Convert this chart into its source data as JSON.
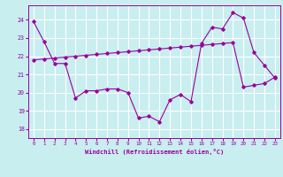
{
  "background_color": "#c8eef0",
  "line_color": "#990099",
  "grid_color": "#ffffff",
  "xlim": [
    -0.5,
    23.5
  ],
  "ylim": [
    17.5,
    24.8
  ],
  "yticks": [
    18,
    19,
    20,
    21,
    22,
    23,
    24
  ],
  "xticks": [
    0,
    1,
    2,
    3,
    4,
    5,
    6,
    7,
    8,
    9,
    10,
    11,
    12,
    13,
    14,
    15,
    16,
    17,
    18,
    19,
    20,
    21,
    22,
    23
  ],
  "xlabel": "Windchill (Refroidissement éolien,°C)",
  "series1_x": [
    0,
    1,
    2,
    3,
    4,
    5,
    6,
    7,
    8,
    9,
    10,
    11,
    12,
    13,
    14,
    15,
    16,
    17,
    18,
    19,
    20,
    21,
    22,
    23
  ],
  "series1_y": [
    23.9,
    22.8,
    21.6,
    21.6,
    19.7,
    20.1,
    20.1,
    20.2,
    20.2,
    20.0,
    18.6,
    18.7,
    18.4,
    19.6,
    19.9,
    19.5,
    22.7,
    23.6,
    23.5,
    24.4,
    24.1,
    22.2,
    21.5,
    20.8
  ],
  "series2_x": [
    0,
    1,
    2,
    3,
    4,
    5,
    6,
    7,
    8,
    9,
    10,
    11,
    12,
    13,
    14,
    15,
    16,
    17,
    18,
    19,
    20,
    21,
    22,
    23
  ],
  "series2_y": [
    21.8,
    21.85,
    21.9,
    21.95,
    22.0,
    22.05,
    22.1,
    22.15,
    22.2,
    22.25,
    22.3,
    22.35,
    22.4,
    22.45,
    22.5,
    22.55,
    22.6,
    22.65,
    22.7,
    22.75,
    20.3,
    20.4,
    20.5,
    20.85
  ]
}
